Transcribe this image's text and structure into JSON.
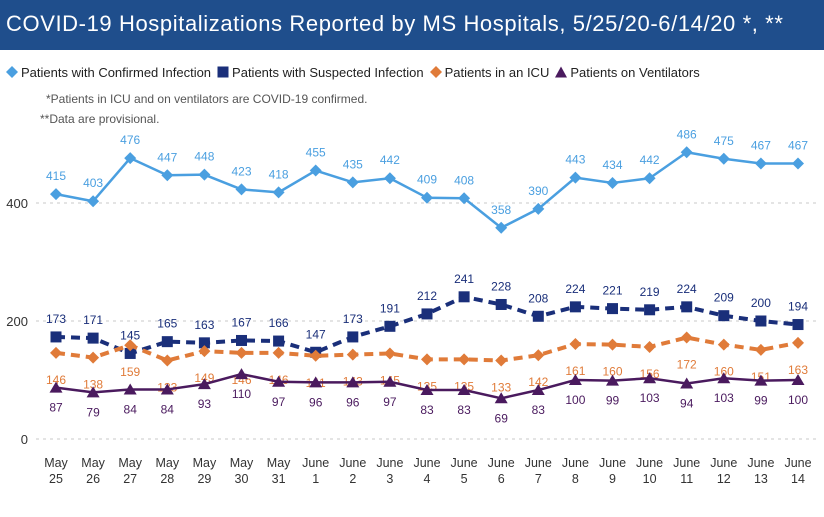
{
  "title": "COVID-19 Hospitalizations Reported by MS Hospitals, 5/25/20-6/14/20 *, **",
  "notes": [
    "*Patients in ICU and on ventilators are COVID-19 confirmed.",
    "**Data are provisional."
  ],
  "colors": {
    "title_bar": "#1f4e8c",
    "confirmed": "#4a9fe0",
    "suspected": "#1a2f7a",
    "icu": "#e07b39",
    "ventilators": "#4a1a5e"
  },
  "chart_data": {
    "type": "line",
    "title": "COVID-19 Hospitalizations Reported by MS Hospitals, 5/25/20-6/14/20 *, **",
    "xlabel": "",
    "ylabel": "",
    "ylim": [
      0,
      500
    ],
    "yticks": [
      0,
      200,
      400
    ],
    "grid": "horizontal dashed",
    "legend": "top",
    "categories": [
      [
        "May",
        "25"
      ],
      [
        "May",
        "26"
      ],
      [
        "May",
        "27"
      ],
      [
        "May",
        "28"
      ],
      [
        "May",
        "29"
      ],
      [
        "May",
        "30"
      ],
      [
        "May",
        "31"
      ],
      [
        "June",
        "1"
      ],
      [
        "June",
        "2"
      ],
      [
        "June",
        "3"
      ],
      [
        "June",
        "4"
      ],
      [
        "June",
        "5"
      ],
      [
        "June",
        "6"
      ],
      [
        "June",
        "7"
      ],
      [
        "June",
        "8"
      ],
      [
        "June",
        "9"
      ],
      [
        "June",
        "10"
      ],
      [
        "June",
        "11"
      ],
      [
        "June",
        "12"
      ],
      [
        "June",
        "13"
      ],
      [
        "June",
        "14"
      ]
    ],
    "series": [
      {
        "name": "Patients with Confirmed Infection",
        "color": "#4a9fe0",
        "marker": "diamond",
        "dashed": false,
        "values": [
          415,
          403,
          476,
          447,
          448,
          423,
          418,
          455,
          435,
          442,
          409,
          408,
          358,
          390,
          443,
          434,
          442,
          486,
          475,
          467,
          467
        ]
      },
      {
        "name": "Patients with Suspected Infection",
        "color": "#1a2f7a",
        "marker": "square",
        "dashed": true,
        "values": [
          173,
          171,
          145,
          165,
          163,
          167,
          166,
          147,
          173,
          191,
          212,
          241,
          228,
          208,
          224,
          221,
          219,
          224,
          209,
          200,
          194
        ]
      },
      {
        "name": "Patients in an ICU",
        "color": "#e07b39",
        "marker": "diamond",
        "dashed": true,
        "values": [
          146,
          138,
          159,
          133,
          149,
          146,
          146,
          141,
          143,
          145,
          135,
          135,
          133,
          142,
          161,
          160,
          156,
          172,
          160,
          151,
          163
        ]
      },
      {
        "name": "Patients on Ventilators",
        "color": "#4a1a5e",
        "marker": "triangle",
        "dashed": false,
        "values": [
          87,
          79,
          84,
          84,
          93,
          110,
          97,
          96,
          96,
          97,
          83,
          83,
          69,
          83,
          100,
          99,
          103,
          94,
          103,
          99,
          100
        ]
      }
    ]
  }
}
